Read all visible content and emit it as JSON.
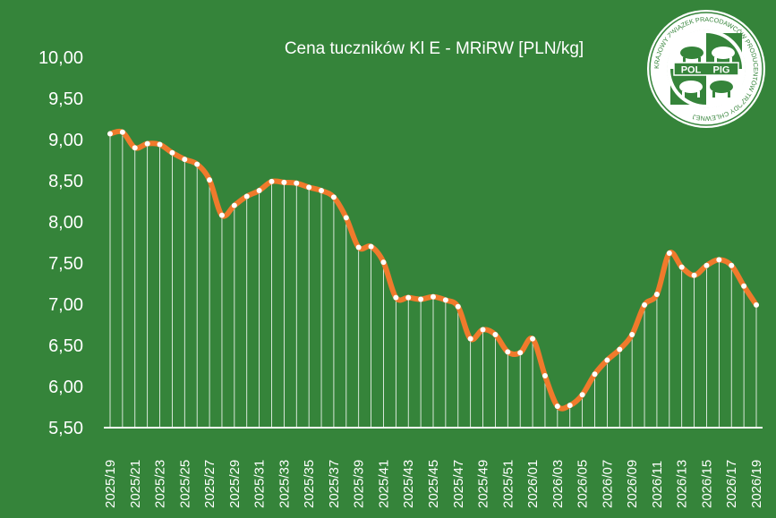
{
  "chart_data": {
    "type": "line",
    "title": "Cena tuczników Kl E - MRiRW [PLN/kg]",
    "ylim": [
      5.5,
      10.0
    ],
    "yticks": [
      "5,50",
      "6,00",
      "6,50",
      "7,00",
      "7,50",
      "8,00",
      "8,50",
      "9,00",
      "9,50",
      "10,00"
    ],
    "ytick_values": [
      5.5,
      6.0,
      6.5,
      7.0,
      7.5,
      8.0,
      8.5,
      9.0,
      9.5,
      10.0
    ],
    "x": [
      "2025/19",
      "2025/20",
      "2025/21",
      "2025/22",
      "2025/23",
      "2025/24",
      "2025/25",
      "2025/26",
      "2025/27",
      "2025/28",
      "2025/29",
      "2025/30",
      "2025/31",
      "2025/32",
      "2025/33",
      "2025/34",
      "2025/35",
      "2025/36",
      "2025/37",
      "2025/38",
      "2025/39",
      "2025/40",
      "2025/41",
      "2025/42",
      "2025/43",
      "2025/44",
      "2025/45",
      "2025/46",
      "2025/47",
      "2025/48",
      "2025/49",
      "2025/50",
      "2025/51",
      "2025/52",
      "2026/01",
      "2026/02",
      "2026/03",
      "2026/04",
      "2026/05",
      "2026/06",
      "2026/07",
      "2026/08",
      "2026/09",
      "2026/10",
      "2026/11",
      "2026/12",
      "2026/13",
      "2026/14",
      "2026/15",
      "2026/16",
      "2026/17",
      "2026/18",
      "2026/19"
    ],
    "xtick_labels": [
      "2025/19",
      "2025/21",
      "2025/23",
      "2025/25",
      "2025/27",
      "2025/29",
      "2025/31",
      "2025/33",
      "2025/35",
      "2025/37",
      "2025/39",
      "2025/41",
      "2025/43",
      "2025/45",
      "2025/47",
      "2025/49",
      "2025/51",
      "2026/01",
      "2026/03",
      "2026/05",
      "2026/07",
      "2026/09",
      "2026/11",
      "2026/13",
      "2026/15",
      "2026/17",
      "2026/19"
    ],
    "values": [
      9.07,
      9.09,
      8.9,
      8.95,
      8.94,
      8.84,
      8.76,
      8.7,
      8.51,
      8.08,
      8.2,
      8.31,
      8.38,
      8.49,
      8.48,
      8.47,
      8.42,
      8.38,
      8.3,
      8.05,
      7.69,
      7.7,
      7.51,
      7.08,
      7.08,
      7.06,
      7.09,
      7.05,
      6.97,
      6.58,
      6.69,
      6.63,
      6.42,
      6.41,
      6.58,
      6.13,
      5.76,
      5.77,
      5.9,
      6.15,
      6.32,
      6.45,
      6.63,
      6.99,
      7.12,
      7.62,
      7.45,
      7.35,
      7.47,
      7.54,
      7.47,
      7.22,
      6.99
    ],
    "grid": false,
    "legend": "none",
    "colors": {
      "background": "#35843a",
      "line": "#f07a2c",
      "marker": "#ffffff",
      "drop_line": "#ffffff",
      "text": "#ffffff"
    }
  },
  "logo": {
    "text_top": "POL",
    "text_right": "PIG",
    "ring_text": "KRAJOWY ZWIĄZEK PRACODAWCÓW PRODUCENTÓW TRZODY CHLEWNEJ"
  }
}
